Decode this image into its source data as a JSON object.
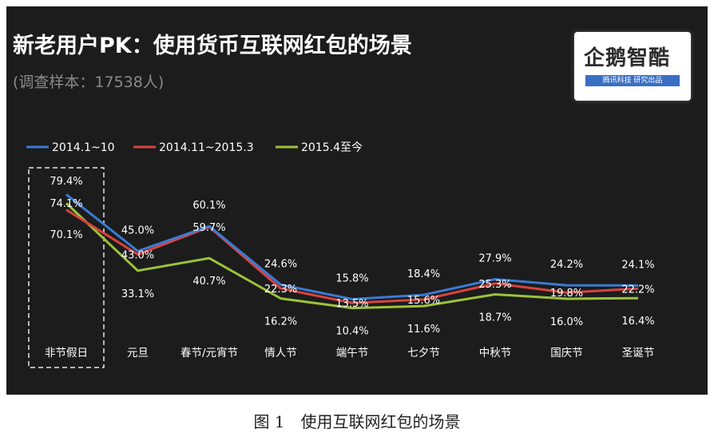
{
  "title": "新老用户PK：使用货币互联网红包的场景",
  "subtitle": "(调查样本：17538人)",
  "logo": {
    "name": "企鹅智酷",
    "tagline": "腾讯科技 研究出品"
  },
  "caption": "图 1　使用互联网红包的场景",
  "chart_data": {
    "type": "line",
    "title": "新老用户PK：使用货币互联网红包的场景",
    "categories": [
      "非节假日",
      "元旦",
      "春节/元宵节",
      "情人节",
      "端午节",
      "七夕节",
      "中秋节",
      "国庆节",
      "圣诞节"
    ],
    "series": [
      {
        "name": "2014.1~10",
        "color": "#3a7bd5",
        "values": [
          79.4,
          45.0,
          60.1,
          24.6,
          15.8,
          18.4,
          27.9,
          24.2,
          24.1
        ]
      },
      {
        "name": "2014.11~2015.3",
        "color": "#d9433f",
        "values": [
          70.1,
          43.0,
          59.7,
          22.3,
          13.5,
          15.6,
          25.3,
          19.8,
          22.2
        ]
      },
      {
        "name": "2015.4至今",
        "color": "#9bc33b",
        "values": [
          74.1,
          33.1,
          40.7,
          16.2,
          10.4,
          11.6,
          18.7,
          16.0,
          16.4
        ]
      }
    ],
    "data_labels": [
      [
        "79.4%",
        "45.0%",
        "60.1%",
        "24.6%",
        "15.8%",
        "18.4%",
        "27.9%",
        "24.2%",
        "24.1%"
      ],
      [
        "70.1%",
        "43.0%",
        "59.7%",
        "22.3%",
        "13.5%",
        "15.6%",
        "25.3%",
        "19.8%",
        "22.2%"
      ],
      [
        "74.1%",
        "33.1%",
        "40.7%",
        "16.2%",
        "10.4%",
        "11.6%",
        "18.7%",
        "16.0%",
        "16.4%"
      ]
    ],
    "ylim": [
      0,
      100
    ],
    "legend_position": "top-left",
    "highlight_category": "非节假日",
    "grid": false
  }
}
